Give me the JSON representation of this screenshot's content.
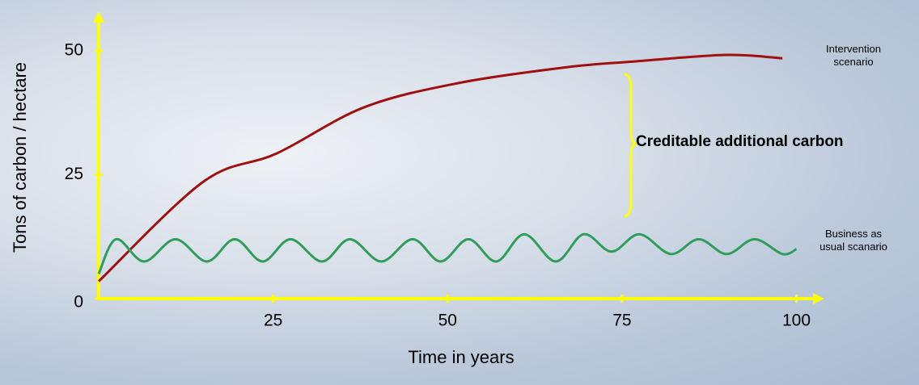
{
  "chart_data": {
    "type": "line",
    "x_label": "Time in years",
    "y_label": "Tons of carbon / hectare",
    "annotation": "Creditable additional carbon",
    "xlim": [
      0,
      104
    ],
    "ylim": [
      0,
      58
    ],
    "xticks": [
      25,
      50,
      75,
      100
    ],
    "yticks": [
      0,
      25,
      50
    ],
    "axis_color": "#ffff00",
    "series": [
      {
        "name": "Intervention scenario",
        "color": "#a01010",
        "x": [
          0,
          15,
          25.5,
          38,
          51.5,
          67,
          77,
          90,
          98
        ],
        "values": [
          3.5,
          23.6,
          29.3,
          38.6,
          43.5,
          46.7,
          47.9,
          49.2,
          48.5
        ]
      },
      {
        "name": "Business as usual scanario",
        "color": "#2e9e5a",
        "x": [
          0,
          2.5,
          6.5,
          11,
          15.5,
          19.5,
          23.5,
          27.5,
          32,
          36,
          40.5,
          45,
          49,
          53,
          57,
          61,
          65.5,
          69.5,
          73.5,
          77.5,
          82,
          86,
          90,
          94,
          98,
          100
        ],
        "values": [
          5,
          12,
          7.5,
          12,
          7.5,
          12,
          7.5,
          12,
          7.5,
          12,
          7.5,
          12,
          7.5,
          12,
          7.5,
          13,
          7.5,
          13,
          9.5,
          13,
          9,
          12,
          9,
          12,
          9,
          10
        ]
      }
    ]
  }
}
